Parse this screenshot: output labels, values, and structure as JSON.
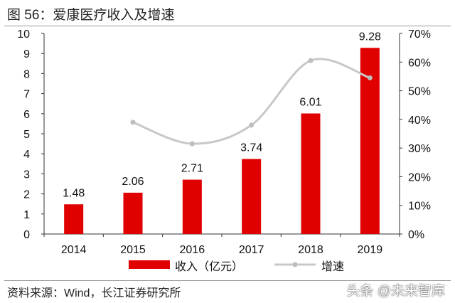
{
  "header": {
    "title": "图 56：爱康医疗收入及增速"
  },
  "footer": {
    "source": "资料来源：Wind，长江证券研究所",
    "watermark": "头条 @未来智库"
  },
  "chart_data": {
    "type": "bar",
    "title": "",
    "categories": [
      "2014",
      "2015",
      "2016",
      "2017",
      "2018",
      "2019"
    ],
    "series": [
      {
        "name": "收入（亿元）",
        "type": "bar",
        "axis": "left",
        "color": "#e00000",
        "values": [
          1.48,
          2.06,
          2.71,
          3.74,
          6.01,
          9.28
        ],
        "labels": [
          "1.48",
          "2.06",
          "2.71",
          "3.74",
          "6.01",
          "9.28"
        ]
      },
      {
        "name": "增速",
        "type": "line",
        "axis": "right",
        "color": "#c8c8c8",
        "values": [
          null,
          39,
          31.5,
          38,
          60.5,
          54.5
        ]
      }
    ],
    "y_left": {
      "min": 0,
      "max": 10,
      "ticks": [
        "0",
        "1",
        "2",
        "3",
        "4",
        "5",
        "6",
        "7",
        "8",
        "9",
        "10"
      ]
    },
    "y_right": {
      "min": 0,
      "max": 70,
      "ticks": [
        "0%",
        "10%",
        "20%",
        "30%",
        "40%",
        "50%",
        "60%",
        "70%"
      ]
    },
    "grid": false,
    "legend": "bottom"
  }
}
